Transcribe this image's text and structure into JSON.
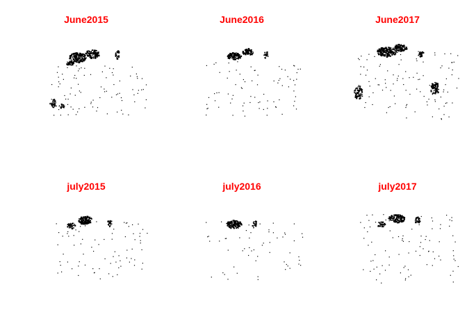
{
  "colors": {
    "title": "#ff0000",
    "fire": "#000000",
    "background": "#ffffff"
  },
  "panels": [
    {
      "title": "June2015",
      "pattern": "june2015"
    },
    {
      "title": "June2016",
      "pattern": "june2016"
    },
    {
      "title": "June2017",
      "pattern": "june2017"
    },
    {
      "title": "july2015",
      "pattern": "july2015"
    },
    {
      "title": "july2016",
      "pattern": "july2016"
    },
    {
      "title": "july2017",
      "pattern": "july2017"
    }
  ]
}
